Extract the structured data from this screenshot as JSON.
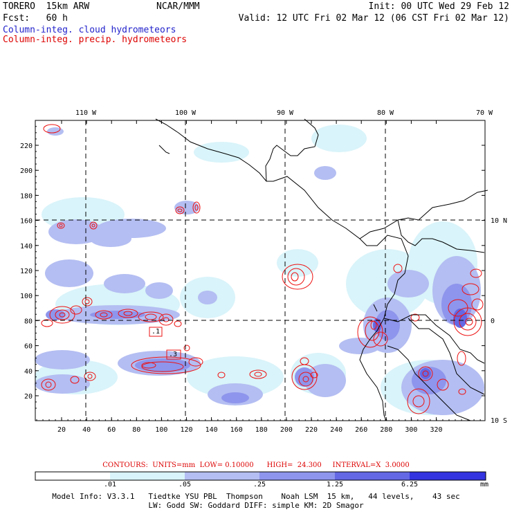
{
  "header": {
    "model": "TORERO  15km ARW",
    "org": "NCAR/MMM",
    "init": "Init: 00 UTC Wed 29 Feb 12",
    "fcst": "Fcst:   60 h",
    "valid": "Valid: 12 UTC Fri 02 Mar 12 (06 CST Fri 02 Mar 12)",
    "field_cloud": "Column-integ. cloud hydrometeors",
    "field_precip": "Column-integ. precip. hydrometeors"
  },
  "colors": {
    "cloud_title": "#2222cc",
    "precip_title": "#dd0000",
    "contour": "#ee1111",
    "fill_1": "#d9f4fa",
    "fill_2": "#b4bef2",
    "fill_3": "#8e95ec",
    "fill_4": "#6468e4",
    "fill_5": "#3434e0"
  },
  "axes": {
    "top_lon": [
      "110 W",
      "100 W",
      "90 W",
      "80 W",
      "70 W"
    ],
    "right_lat": [
      "10 N",
      "0",
      "10 S"
    ],
    "y_ticks": [
      "20",
      "40",
      "60",
      "80",
      "100",
      "120",
      "140",
      "160",
      "180",
      "200",
      "220"
    ],
    "x_ticks": [
      "20",
      "40",
      "60",
      "80",
      "100",
      "120",
      "140",
      "160",
      "180",
      "200",
      "220",
      "240",
      "260",
      "280",
      "300",
      "320"
    ]
  },
  "contour_info": "CONTOURS:  UNITS=mm  LOW= 0.10000      HIGH=  24.300     INTERVAL=X  3.0000",
  "box_labels": [
    ".1",
    ".3"
  ],
  "colorbar": {
    "labels": [
      ".01",
      ".05",
      ".25",
      "1.25",
      "6.25"
    ],
    "unit": "mm"
  },
  "footer": {
    "line1": "Model Info: V3.3.1   Tiedtke YSU PBL  Thompson    Noah LSM  15 km,   44 levels,    43 sec",
    "line2": "LW: Godd SW: Goddard DIFF: simple KM: 2D Smagor"
  }
}
